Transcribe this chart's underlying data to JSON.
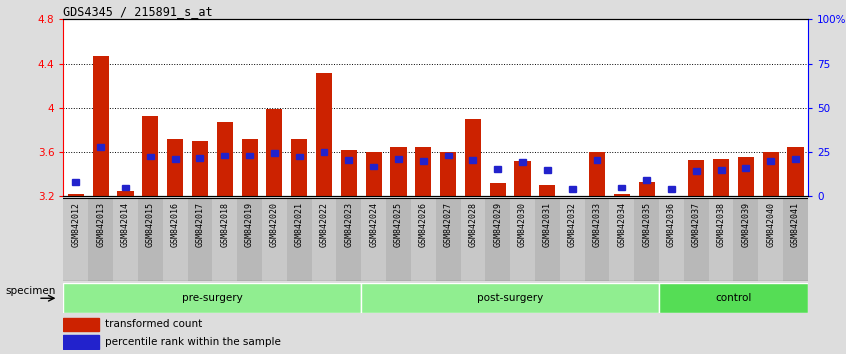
{
  "title": "GDS4345 / 215891_s_at",
  "samples": [
    "GSM842012",
    "GSM842013",
    "GSM842014",
    "GSM842015",
    "GSM842016",
    "GSM842017",
    "GSM842018",
    "GSM842019",
    "GSM842020",
    "GSM842021",
    "GSM842022",
    "GSM842023",
    "GSM842024",
    "GSM842025",
    "GSM842026",
    "GSM842027",
    "GSM842028",
    "GSM842029",
    "GSM842030",
    "GSM842031",
    "GSM842032",
    "GSM842033",
    "GSM842034",
    "GSM842035",
    "GSM842036",
    "GSM842037",
    "GSM842038",
    "GSM842039",
    "GSM842040",
    "GSM842041"
  ],
  "transformed_count": [
    3.22,
    4.47,
    3.25,
    3.93,
    3.72,
    3.7,
    3.87,
    3.72,
    3.99,
    3.72,
    4.32,
    3.62,
    3.6,
    3.65,
    3.65,
    3.6,
    3.9,
    3.32,
    3.52,
    3.3,
    3.2,
    3.6,
    3.22,
    3.33,
    3.2,
    3.53,
    3.54,
    3.56,
    3.6,
    3.65
  ],
  "blue_square_value": [
    3.33,
    3.65,
    3.28,
    3.56,
    3.54,
    3.55,
    3.57,
    3.57,
    3.59,
    3.56,
    3.6,
    3.53,
    3.47,
    3.54,
    3.52,
    3.57,
    3.53,
    3.45,
    3.51,
    3.44,
    3.27,
    3.53,
    3.28,
    3.35,
    3.27,
    3.43,
    3.44,
    3.46,
    3.52,
    3.54
  ],
  "group_colors": [
    "#90EE90",
    "#90EE90",
    "#55DD55"
  ],
  "group_names": [
    "pre-surgery",
    "post-surgery",
    "control"
  ],
  "group_ranges": [
    [
      0,
      12
    ],
    [
      12,
      24
    ],
    [
      24,
      30
    ]
  ],
  "ylim": [
    3.2,
    4.8
  ],
  "yticks": [
    3.2,
    3.6,
    4.0,
    4.4,
    4.8
  ],
  "ytick_labels_left": [
    "3.2",
    "3.6",
    "4",
    "4.4",
    "4.8"
  ],
  "ytick_labels_right": [
    "0",
    "25",
    "50",
    "75",
    "100%"
  ],
  "grid_lines": [
    3.6,
    4.0,
    4.4
  ],
  "bar_color": "#CC2200",
  "blue_color": "#2222CC",
  "plot_bg": "#FFFFFF",
  "fig_bg": "#DDDDDD",
  "tick_area_bg": "#BBBBBB"
}
